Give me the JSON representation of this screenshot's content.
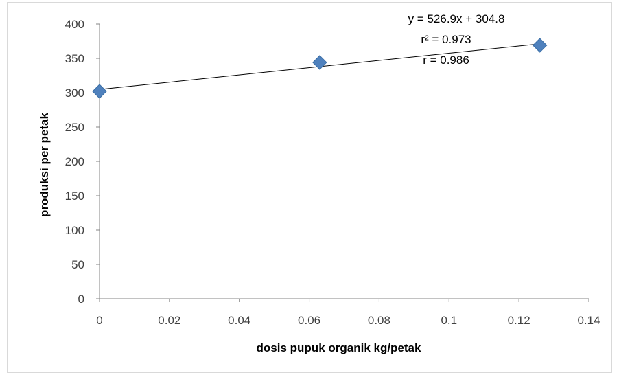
{
  "chart_data": {
    "type": "scatter",
    "title": "",
    "xlabel": "dosis pupuk organik kg/petak",
    "ylabel": "produksi per petak",
    "xlim": [
      0,
      0.14
    ],
    "ylim": [
      0,
      400
    ],
    "x_ticks": [
      "0",
      "0.02",
      "0.04",
      "0.06",
      "0.08",
      "0.1",
      "0.12",
      "0.14"
    ],
    "y_ticks": [
      "0",
      "50",
      "100",
      "150",
      "200",
      "250",
      "300",
      "350",
      "400"
    ],
    "grid": false,
    "series": [
      {
        "x": [
          0,
          0.063,
          0.126
        ],
        "y": [
          302,
          344,
          369
        ],
        "color": "#4f81bd",
        "marker": "diamond"
      }
    ],
    "trendline": {
      "type": "linear",
      "slope": 526.9,
      "intercept": 304.8,
      "color": "#000000"
    },
    "annotations": [
      "y = 526.9x + 304.8",
      "r² = 0.973",
      "r = 0.986"
    ]
  }
}
